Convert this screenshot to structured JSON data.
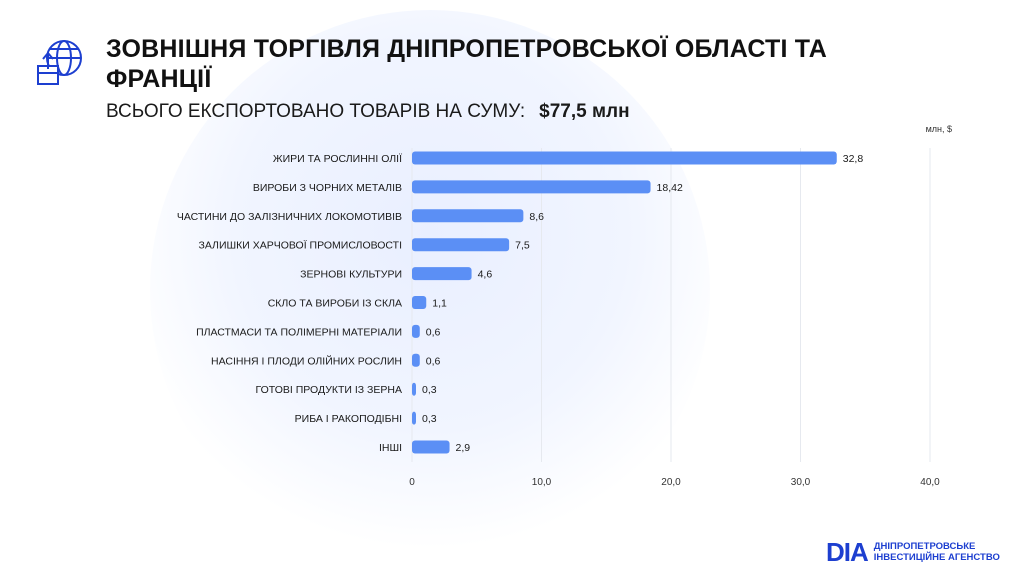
{
  "header": {
    "title": "ЗОВНІШНЯ ТОРГІВЛЯ ДНІПРОПЕТРОВСЬКОЇ ОБЛАСТІ ТА ФРАНЦІЇ",
    "subtitle_label": "ВСЬОГО ЕКСПОРТОВАНО ТОВАРІВ НА СУМУ:",
    "subtitle_amount": "$77,5 млн",
    "icon": "globe-export-box-icon"
  },
  "brand": {
    "mark": "DIA",
    "line1": "ДНІПРОПЕТРОВСЬКЕ",
    "line2": "ІНВЕСТИЦІЙНЕ АГЕНСТВО"
  },
  "colors": {
    "bar": "#5b8ff5",
    "accent": "#1d3fd0",
    "grid": "#e6e9ef",
    "text": "#111111"
  },
  "chart_data": {
    "type": "bar",
    "orientation": "horizontal",
    "unit_label": "млн, $",
    "categories": [
      "ЖИРИ ТА РОСЛИННІ ОЛІЇ",
      "ВИРОБИ З ЧОРНИХ МЕТАЛІВ",
      "ЧАСТИНИ ДО ЗАЛІЗНИЧНИХ ЛОКОМОТИВІВ",
      "ЗАЛИШКИ ХАРЧОВОЇ ПРОМИСЛОВОСТІ",
      "ЗЕРНОВІ КУЛЬТУРИ",
      "СКЛО ТА ВИРОБИ ІЗ СКЛА",
      "ПЛАСТМАСИ ТА ПОЛІМЕРНІ МАТЕРІАЛИ",
      "НАСІННЯ І ПЛОДИ ОЛІЙНИХ РОСЛИН",
      "ГОТОВІ ПРОДУКТИ ІЗ ЗЕРНА",
      "РИБА І РАКОПОДІБНІ",
      "ІНШІ"
    ],
    "values": [
      32.8,
      18.42,
      8.6,
      7.5,
      4.6,
      1.1,
      0.6,
      0.6,
      0.3,
      0.3,
      2.9
    ],
    "value_labels": [
      "32,8",
      "18,42",
      "8,6",
      "7,5",
      "4,6",
      "1,1",
      "0,6",
      "0,6",
      "0,3",
      "0,3",
      "2,9"
    ],
    "xlim": [
      0,
      40
    ],
    "xticks": [
      0,
      10,
      20,
      30,
      40
    ],
    "xtick_labels": [
      "0",
      "10,0",
      "20,0",
      "30,0",
      "40,0"
    ],
    "grid": true
  }
}
